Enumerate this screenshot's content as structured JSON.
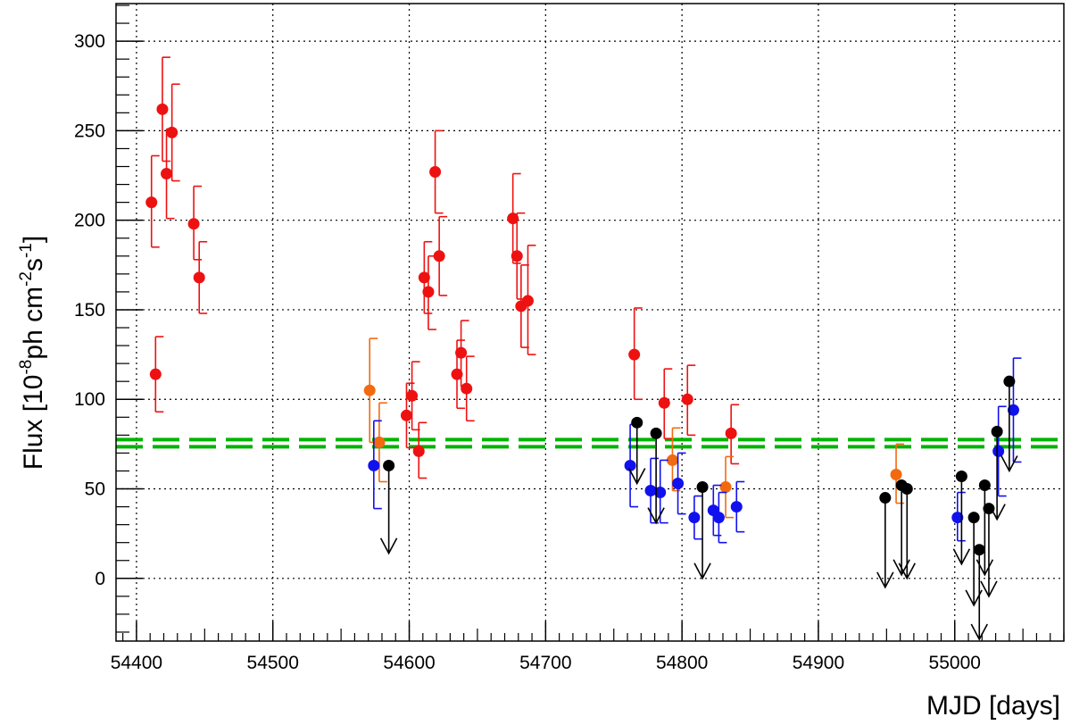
{
  "chart_data": {
    "type": "scatter",
    "title": "",
    "xlabel": "MJD [days]",
    "ylabel": {
      "main": "Flux [10",
      "exp1": "-8",
      "mid": "ph cm",
      "exp2": "-2",
      "mid2": "s",
      "exp3": "-1",
      "end": "]"
    },
    "xlim": [
      54385,
      55080
    ],
    "ylim": [
      -35,
      321
    ],
    "grid": true,
    "xticks": [
      54400,
      54500,
      54600,
      54700,
      54800,
      54900,
      55000
    ],
    "yticks": [
      0,
      50,
      100,
      150,
      200,
      250,
      300
    ],
    "reference_lines": [
      {
        "y": 77.5,
        "color": "#00b400",
        "style": "dashed"
      },
      {
        "y": 73.5,
        "color": "#00b400",
        "style": "dashed"
      }
    ],
    "series": [
      {
        "color": "#ee1111",
        "type": "errorbar",
        "points": [
          {
            "x": 54411,
            "y": 210,
            "lo": 185,
            "hi": 236
          },
          {
            "x": 54414,
            "y": 114,
            "lo": 93,
            "hi": 135
          },
          {
            "x": 54419,
            "y": 262,
            "lo": 233,
            "hi": 291
          },
          {
            "x": 54422,
            "y": 226,
            "lo": 201,
            "hi": 251
          },
          {
            "x": 54426,
            "y": 249,
            "lo": 222,
            "hi": 276
          },
          {
            "x": 54442,
            "y": 198,
            "lo": 178,
            "hi": 219
          },
          {
            "x": 54446,
            "y": 168,
            "lo": 148,
            "hi": 188
          },
          {
            "x": 54598,
            "y": 91,
            "lo": 73,
            "hi": 109
          },
          {
            "x": 54602,
            "y": 102,
            "lo": 83,
            "hi": 121
          },
          {
            "x": 54607,
            "y": 71,
            "lo": 56,
            "hi": 87
          },
          {
            "x": 54611,
            "y": 168,
            "lo": 148,
            "hi": 188
          },
          {
            "x": 54614,
            "y": 160,
            "lo": 139,
            "hi": 180
          },
          {
            "x": 54619,
            "y": 227,
            "lo": 204,
            "hi": 250
          },
          {
            "x": 54622,
            "y": 180,
            "lo": 158,
            "hi": 202
          },
          {
            "x": 54635,
            "y": 114,
            "lo": 95,
            "hi": 133
          },
          {
            "x": 54638,
            "y": 126,
            "lo": 107,
            "hi": 144
          },
          {
            "x": 54642,
            "y": 106,
            "lo": 88,
            "hi": 124
          },
          {
            "x": 54676,
            "y": 201,
            "lo": 176,
            "hi": 226
          },
          {
            "x": 54679,
            "y": 180,
            "lo": 156,
            "hi": 204
          },
          {
            "x": 54682,
            "y": 152,
            "lo": 129,
            "hi": 175
          },
          {
            "x": 54687,
            "y": 155,
            "lo": 125,
            "hi": 186
          },
          {
            "x": 54765,
            "y": 125,
            "lo": 100,
            "hi": 151
          },
          {
            "x": 54787,
            "y": 98,
            "lo": 78,
            "hi": 117
          },
          {
            "x": 54804,
            "y": 100,
            "lo": 80,
            "hi": 119
          },
          {
            "x": 54836,
            "y": 81,
            "lo": 64,
            "hi": 97
          }
        ]
      },
      {
        "color": "#f26a10",
        "type": "errorbar",
        "points": [
          {
            "x": 54571,
            "y": 105,
            "lo": 76,
            "hi": 134
          },
          {
            "x": 54578,
            "y": 76,
            "lo": 54,
            "hi": 98
          },
          {
            "x": 54793,
            "y": 66,
            "lo": 49,
            "hi": 84
          },
          {
            "x": 54832,
            "y": 51,
            "lo": 34,
            "hi": 68
          },
          {
            "x": 54957,
            "y": 58,
            "lo": 42,
            "hi": 75
          }
        ]
      },
      {
        "color": "#1111ee",
        "type": "errorbar",
        "points": [
          {
            "x": 54574,
            "y": 63,
            "lo": 39,
            "hi": 88
          },
          {
            "x": 54762,
            "y": 63,
            "lo": 40,
            "hi": 86
          },
          {
            "x": 54777,
            "y": 49,
            "lo": 31,
            "hi": 67
          },
          {
            "x": 54784,
            "y": 48,
            "lo": 31,
            "hi": 66
          },
          {
            "x": 54797,
            "y": 53,
            "lo": 36,
            "hi": 70
          },
          {
            "x": 54809,
            "y": 34,
            "lo": 22,
            "hi": 46
          },
          {
            "x": 54823,
            "y": 38,
            "lo": 24,
            "hi": 52
          },
          {
            "x": 54827,
            "y": 34,
            "lo": 20,
            "hi": 48
          },
          {
            "x": 54840,
            "y": 40,
            "lo": 26,
            "hi": 54
          },
          {
            "x": 55002,
            "y": 34,
            "lo": 21,
            "hi": 48
          },
          {
            "x": 55032,
            "y": 71,
            "lo": 46,
            "hi": 96
          },
          {
            "x": 55043,
            "y": 94,
            "lo": 65,
            "hi": 123
          }
        ]
      },
      {
        "color": "#000000",
        "type": "upper_limit",
        "points": [
          {
            "x": 54585,
            "y": 63,
            "arrow_to": 14
          },
          {
            "x": 54767,
            "y": 87,
            "arrow_to": 53
          },
          {
            "x": 54781,
            "y": 81,
            "arrow_to": 31
          },
          {
            "x": 54815,
            "y": 51,
            "arrow_to": 0
          },
          {
            "x": 54949,
            "y": 45,
            "arrow_to": -5
          },
          {
            "x": 54961,
            "y": 52,
            "arrow_to": 2
          },
          {
            "x": 54965,
            "y": 50,
            "arrow_to": 0
          },
          {
            "x": 55005,
            "y": 57,
            "arrow_to": 8
          },
          {
            "x": 55014,
            "y": 34,
            "arrow_to": -15
          },
          {
            "x": 55018,
            "y": 16,
            "arrow_to": -34
          },
          {
            "x": 55022,
            "y": 52,
            "arrow_to": 2
          },
          {
            "x": 55025,
            "y": 39,
            "arrow_to": -10
          },
          {
            "x": 55031,
            "y": 82,
            "arrow_to": 33
          },
          {
            "x": 55040,
            "y": 110,
            "arrow_to": 60
          }
        ]
      }
    ]
  }
}
